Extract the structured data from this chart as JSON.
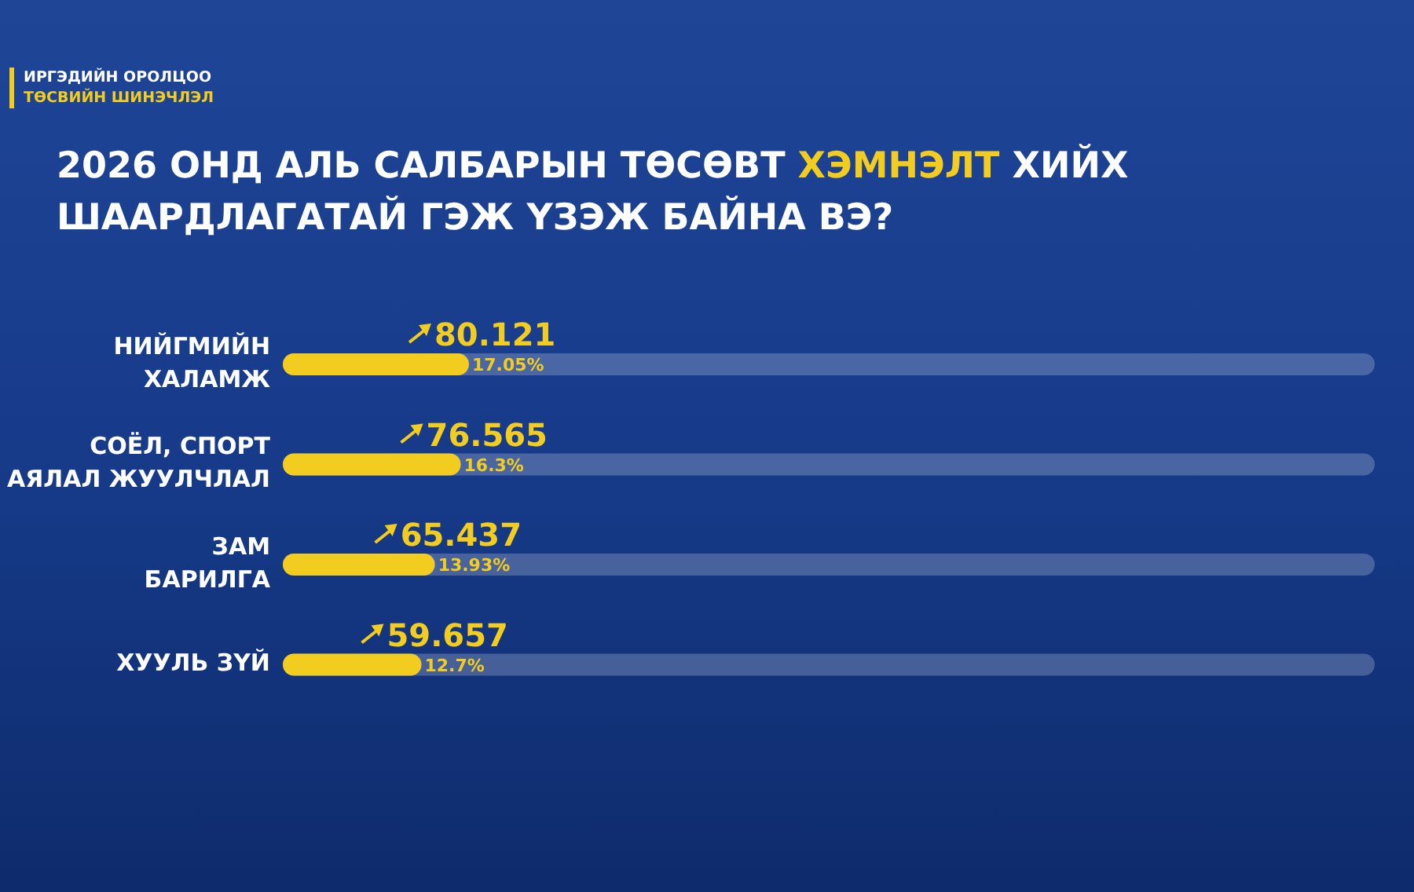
{
  "chart_data": {
    "type": "bar",
    "orientation": "horizontal",
    "title": "2026 ОНД АЛЬ САЛБАРЫН ТӨСӨВТ ХЭМНЭЛТ ХИЙХ ШААРДЛАГАТАЙ ГЭЖ ҮЗЭЖ БАЙНА ВЭ?",
    "subtitle": "ИРГЭДИЙН ОРОЛЦОО\nТӨСВИЙН ШИНЭЧЛЭЛ",
    "categories": [
      "НИЙГМИЙН\nХАЛАМЖ",
      "СОЁЛ, СПОРТ\nАЯЛАЛ ЖУУЛЧЛАЛ",
      "ЗАМ\nБАРИЛГА",
      "ХУУЛЬ ЗҮЙ"
    ],
    "values": [
      17.05,
      16.3,
      13.93,
      12.7
    ],
    "value_labels": [
      "17.05%",
      "16.3%",
      "13.93%",
      "12.7%"
    ],
    "color": "#f2cd1f",
    "xlim": [
      0,
      100
    ],
    "tick_labels": "y",
    "grid": false,
    "legend": false,
    "annotations": [
      {
        "text": "80.121",
        "x": 17.05,
        "y": "НИЙГМИЙН\nХАЛАМЖ"
      },
      {
        "text": "76.565",
        "x": 16.3,
        "y": "СОЁЛ, СПОРТ\nАЯЛАЛ ЖУУЛЧЛАЛ"
      },
      {
        "text": "65.437",
        "x": 13.93,
        "y": "ЗАМ\nБАРИЛГА"
      },
      {
        "text": "59.657",
        "x": 12.7,
        "y": "ХУУЛЬ ЗҮЙ"
      }
    ]
  }
}
